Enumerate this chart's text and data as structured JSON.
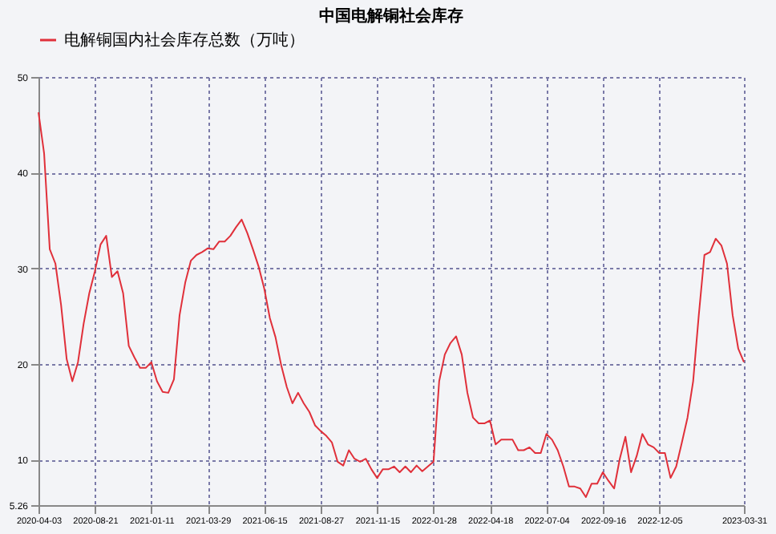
{
  "chart_data": {
    "type": "line",
    "title": "中国电解铜社会库存",
    "categories": [
      "2020-04-03",
      null,
      null,
      null,
      null,
      null,
      null,
      null,
      null,
      null,
      "2020-08-21",
      null,
      null,
      null,
      null,
      null,
      null,
      null,
      null,
      null,
      "2021-01-11",
      null,
      null,
      null,
      null,
      null,
      null,
      null,
      null,
      null,
      "2021-03-29",
      null,
      null,
      null,
      null,
      null,
      null,
      null,
      null,
      null,
      "2021-06-15",
      null,
      null,
      null,
      null,
      null,
      null,
      null,
      null,
      null,
      "2021-08-27",
      null,
      null,
      null,
      null,
      null,
      null,
      null,
      null,
      null,
      "2021-11-15",
      null,
      null,
      null,
      null,
      null,
      null,
      null,
      null,
      null,
      "2022-01-28",
      null,
      null,
      null,
      null,
      null,
      null,
      null,
      null,
      null,
      "2022-04-18",
      null,
      null,
      null,
      null,
      null,
      null,
      null,
      null,
      null,
      "2022-07-04",
      null,
      null,
      null,
      null,
      null,
      null,
      null,
      null,
      null,
      "2022-09-16",
      null,
      null,
      null,
      null,
      null,
      null,
      null,
      null,
      null,
      "2022-12-05",
      null,
      null,
      null,
      null,
      null,
      null,
      null,
      null,
      null,
      null,
      null,
      null,
      null,
      null,
      "2023-03-31"
    ],
    "series": [
      {
        "name": "电解铜国内社会库存总数（万吨）",
        "color": "#e0303a",
        "values": [
          46.3,
          42.0,
          32.0,
          30.5,
          26.2,
          20.5,
          18.2,
          20.2,
          24.2,
          27.4,
          29.7,
          32.5,
          33.4,
          29.1,
          29.7,
          27.4,
          21.9,
          20.7,
          19.6,
          19.6,
          20.2,
          18.2,
          17.1,
          17.0,
          18.4,
          25.1,
          28.5,
          30.8,
          31.4,
          31.7,
          32.1,
          32.0,
          32.8,
          32.8,
          33.4,
          34.3,
          35.1,
          33.7,
          32.0,
          30.2,
          27.9,
          24.8,
          22.8,
          19.9,
          17.6,
          15.9,
          17.0,
          15.9,
          15.0,
          13.6,
          13.0,
          12.5,
          11.8,
          9.8,
          9.4,
          11.0,
          10.1,
          9.8,
          10.1,
          9.0,
          8.1,
          9.0,
          9.0,
          9.3,
          8.7,
          9.3,
          8.7,
          9.4,
          8.8,
          9.3,
          9.8,
          18.2,
          21.0,
          22.2,
          22.9,
          21.0,
          17.0,
          14.4,
          13.8,
          13.8,
          14.1,
          11.6,
          12.1,
          12.1,
          12.1,
          11.0,
          11.0,
          11.3,
          10.7,
          10.7,
          12.7,
          12.1,
          11.0,
          9.3,
          7.2,
          7.2,
          7.0,
          6.1,
          7.5,
          7.5,
          8.7,
          7.8,
          7.0,
          10.1,
          12.4,
          8.7,
          10.4,
          12.7,
          11.6,
          11.3,
          10.7,
          10.7,
          8.1,
          9.3,
          11.8,
          14.4,
          18.2,
          25.1,
          31.4,
          31.7,
          33.1,
          32.4,
          30.5,
          25.1,
          21.6,
          20.2
        ]
      }
    ],
    "ylim": [
      5.26,
      50
    ],
    "yticks": [
      {
        "value": 5.26,
        "label": "5.26"
      },
      10,
      20,
      30,
      40,
      50
    ],
    "grid": true,
    "legend": "top",
    "line_style": "solid"
  }
}
